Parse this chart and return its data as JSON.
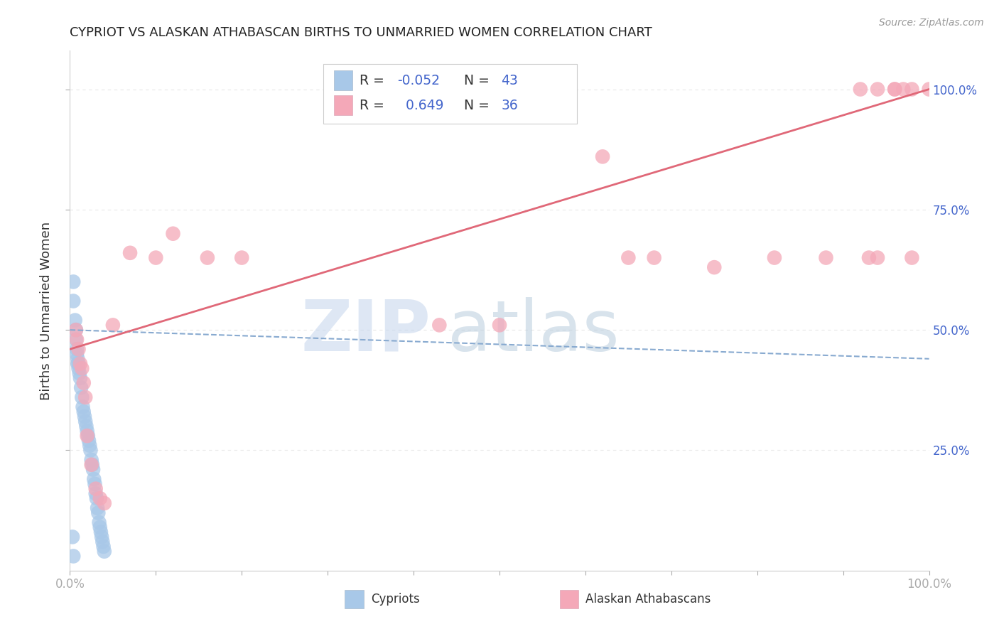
{
  "title": "CYPRIOT VS ALASKAN ATHABASCAN BIRTHS TO UNMARRIED WOMEN CORRELATION CHART",
  "source": "Source: ZipAtlas.com",
  "ylabel": "Births to Unmarried Women",
  "xlim": [
    0.0,
    1.0
  ],
  "ylim": [
    0.0,
    1.08
  ],
  "yticks_right": [
    0.25,
    0.5,
    0.75,
    1.0
  ],
  "ytick_labels_right": [
    "25.0%",
    "50.0%",
    "75.0%",
    "100.0%"
  ],
  "cypriot_color": "#a8c8e8",
  "alaskan_color": "#f4a8b8",
  "trend_cypriot_color": "#88aad0",
  "trend_alaskan_color": "#e06878",
  "watermark_zip": "ZIP",
  "watermark_atlas": "atlas",
  "watermark_color_zip": "#c8d8ee",
  "watermark_color_atlas": "#b8ccdd",
  "background_color": "#ffffff",
  "grid_color": "#e8e8e8",
  "cypriot_x": [
    0.004,
    0.004,
    0.006,
    0.007,
    0.007,
    0.008,
    0.008,
    0.009,
    0.009,
    0.01,
    0.01,
    0.011,
    0.012,
    0.013,
    0.014,
    0.015,
    0.016,
    0.017,
    0.018,
    0.019,
    0.02,
    0.021,
    0.022,
    0.023,
    0.024,
    0.025,
    0.026,
    0.027,
    0.028,
    0.029,
    0.03,
    0.031,
    0.032,
    0.033,
    0.034,
    0.035,
    0.036,
    0.037,
    0.038,
    0.039,
    0.04,
    0.003,
    0.004
  ],
  "cypriot_y": [
    0.6,
    0.56,
    0.52,
    0.5,
    0.48,
    0.46,
    0.45,
    0.44,
    0.43,
    0.43,
    0.42,
    0.41,
    0.4,
    0.38,
    0.36,
    0.34,
    0.33,
    0.32,
    0.31,
    0.3,
    0.29,
    0.28,
    0.27,
    0.26,
    0.25,
    0.23,
    0.22,
    0.21,
    0.19,
    0.18,
    0.16,
    0.15,
    0.13,
    0.12,
    0.1,
    0.09,
    0.08,
    0.07,
    0.06,
    0.05,
    0.04,
    0.07,
    0.03
  ],
  "alaskan_x": [
    0.007,
    0.008,
    0.01,
    0.012,
    0.014,
    0.016,
    0.018,
    0.02,
    0.025,
    0.03,
    0.035,
    0.04,
    0.05,
    0.07,
    0.1,
    0.12,
    0.16,
    0.2,
    0.43,
    0.5,
    0.62,
    0.65,
    0.68,
    0.75,
    0.82,
    0.88,
    0.92,
    0.94,
    0.96,
    0.98,
    1.0,
    0.93,
    0.94,
    0.96,
    0.97,
    0.98
  ],
  "alaskan_y": [
    0.5,
    0.48,
    0.46,
    0.43,
    0.42,
    0.39,
    0.36,
    0.28,
    0.22,
    0.17,
    0.15,
    0.14,
    0.51,
    0.66,
    0.65,
    0.7,
    0.65,
    0.65,
    0.51,
    0.51,
    0.86,
    0.65,
    0.65,
    0.63,
    0.65,
    0.65,
    1.0,
    1.0,
    1.0,
    1.0,
    1.0,
    0.65,
    0.65,
    1.0,
    1.0,
    0.65
  ],
  "cyp_trend_x": [
    0.0,
    1.0
  ],
  "cyp_trend_y": [
    0.5,
    0.44
  ],
  "ala_trend_x": [
    0.0,
    1.0
  ],
  "ala_trend_y": [
    0.46,
    1.0
  ]
}
